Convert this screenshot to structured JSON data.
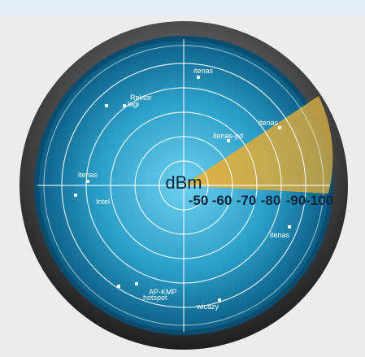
{
  "center_label": "dBm",
  "scale_labels": [
    "-50",
    "-60",
    "-70",
    "-80",
    "-90",
    "-100"
  ],
  "networks": [
    {
      "name": "itenas"
    },
    {
      "name": "Rektor"
    },
    {
      "name": "lagi"
    },
    {
      "name": "itenas-pd"
    },
    {
      "name": "itenas"
    },
    {
      "name": "itenas"
    },
    {
      "name": "Intel"
    },
    {
      "name": "itenas"
    },
    {
      "name": "AP-KMP"
    },
    {
      "name": "hotspot"
    },
    {
      "name": "wicazy"
    }
  ]
}
